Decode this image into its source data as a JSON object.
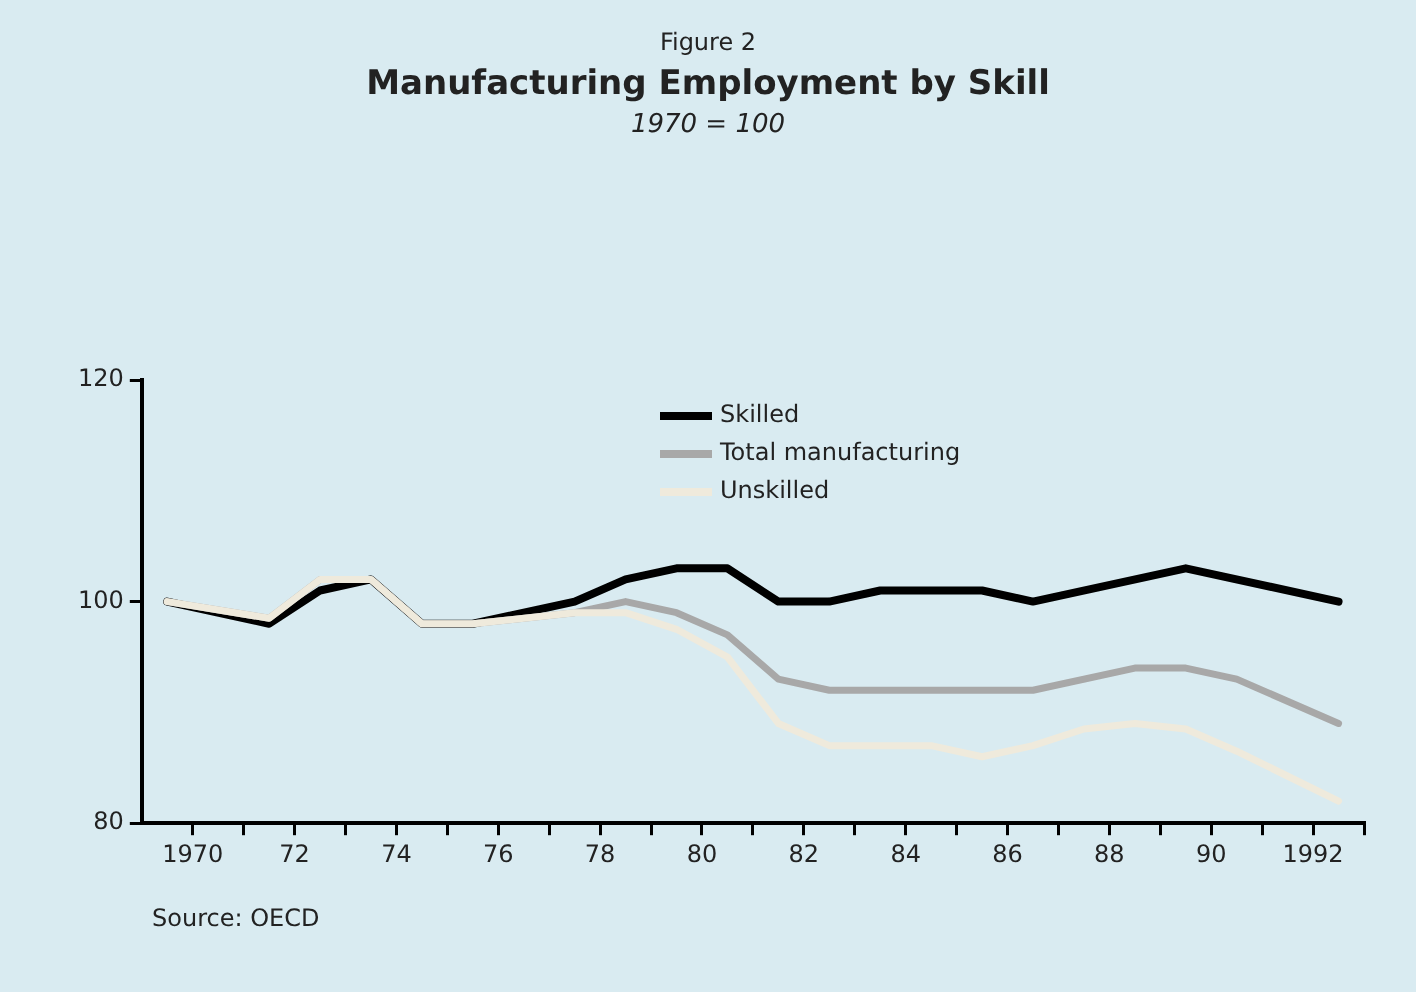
{
  "chart_data": {
    "type": "line",
    "title": "Manufacturing Employment by Skill",
    "subtitle": "1970 = 100",
    "annotations": [
      "Figure 2",
      "Source: OECD"
    ],
    "xlim": [
      1969,
      1993
    ],
    "xticks": [
      {
        "value": 1970,
        "label": "1970"
      },
      {
        "value": 1971,
        "label": null
      },
      {
        "value": 1972,
        "label": "72"
      },
      {
        "value": 1973,
        "label": null
      },
      {
        "value": 1974,
        "label": "74"
      },
      {
        "value": 1975,
        "label": null
      },
      {
        "value": 1976,
        "label": "76"
      },
      {
        "value": 1977,
        "label": null
      },
      {
        "value": 1978,
        "label": "78"
      },
      {
        "value": 1979,
        "label": null
      },
      {
        "value": 1980,
        "label": "80"
      },
      {
        "value": 1981,
        "label": null
      },
      {
        "value": 1982,
        "label": "82"
      },
      {
        "value": 1983,
        "label": null
      },
      {
        "value": 1984,
        "label": "84"
      },
      {
        "value": 1985,
        "label": null
      },
      {
        "value": 1986,
        "label": "86"
      },
      {
        "value": 1987,
        "label": null
      },
      {
        "value": 1988,
        "label": "88"
      },
      {
        "value": 1989,
        "label": null
      },
      {
        "value": 1990,
        "label": "90"
      },
      {
        "value": 1991,
        "label": null
      },
      {
        "value": 1992,
        "label": "1992"
      },
      {
        "value": 1993,
        "label": null
      }
    ],
    "ylim": [
      80,
      120
    ],
    "yticks": [
      80,
      100,
      120
    ],
    "grid": false,
    "legend": "top",
    "marker": "none",
    "line_style": "solid",
    "series": [
      {
        "name": "Unskilled",
        "color": "#efeadc",
        "x": [
          1969.5,
          1971.5,
          1972.5,
          1973.5,
          1974.5,
          1975.5,
          1977.5,
          1978.5,
          1979.5,
          1980.5,
          1981.5,
          1982.5,
          1984.5,
          1985.5,
          1986.5,
          1987.5,
          1988.5,
          1989.5,
          1990.5,
          1992.5
        ],
        "values": [
          100,
          98.5,
          102,
          102,
          98,
          98,
          99,
          99,
          97.5,
          95,
          89,
          87,
          87,
          86,
          87,
          88.5,
          89,
          88.5,
          86.5,
          82
        ]
      },
      {
        "name": "Total manufacturing",
        "color": "#a8a8a8",
        "x": [
          1969.5,
          1971.5,
          1972.5,
          1973.5,
          1974.5,
          1975.5,
          1977.5,
          1978.5,
          1979.5,
          1980.5,
          1981.5,
          1982.5,
          1986.5,
          1988.5,
          1989.5,
          1990.5,
          1992.5
        ],
        "values": [
          100,
          98.5,
          102,
          102,
          98,
          98,
          99,
          100,
          99,
          97,
          93,
          92,
          92,
          94,
          94,
          93,
          89
        ]
      },
      {
        "name": "Skilled",
        "color": "#000000",
        "x": [
          1969.5,
          1971.5,
          1972.5,
          1973.5,
          1974.5,
          1975.5,
          1977.5,
          1978.5,
          1979.5,
          1980.5,
          1981.5,
          1982.5,
          1983.5,
          1985.5,
          1986.5,
          1989.5,
          1992.5
        ],
        "values": [
          100,
          98,
          101,
          102,
          98,
          98,
          100,
          102,
          103,
          103,
          100,
          100,
          101,
          101,
          100,
          103,
          100
        ]
      }
    ]
  }
}
